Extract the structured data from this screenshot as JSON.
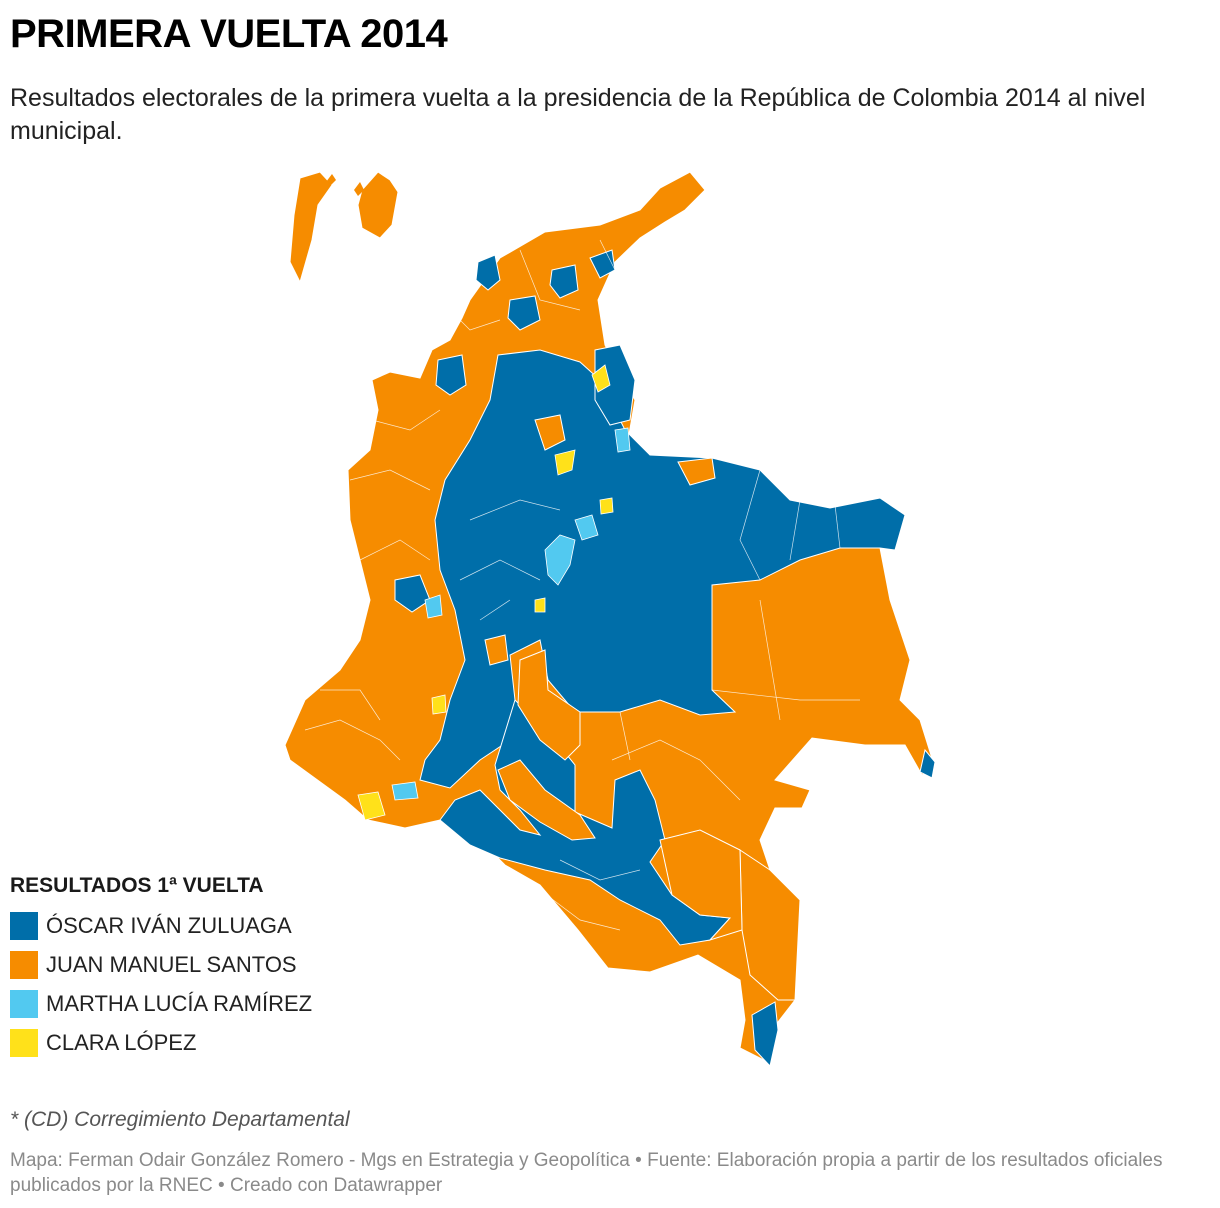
{
  "header": {
    "title": "PRIMERA VUELTA 2014",
    "subtitle": "Resultados electorales de la primera vuelta a la presidencia de la República de Colombia 2014 al nivel municipal."
  },
  "colors": {
    "zuluaga": "#006ea9",
    "santos": "#f68c00",
    "ramirez": "#52c9f0",
    "lopez": "#ffe11a",
    "border": "#ffffff"
  },
  "legend": {
    "title": "RESULTADOS 1ª VUELTA",
    "items": [
      {
        "label": "ÓSCAR IVÁN ZULUAGA",
        "color": "#006ea9"
      },
      {
        "label": "JUAN MANUEL SANTOS",
        "color": "#f68c00"
      },
      {
        "label": "MARTHA LUCÍA RAMÍREZ",
        "color": "#52c9f0"
      },
      {
        "label": "CLARA LÓPEZ",
        "color": "#ffe11a"
      }
    ]
  },
  "footer": {
    "note": "* (CD) Corregimiento Departamental",
    "credits": "Mapa: Ferman Odair González Romero - Mgs en Estrategia y Geopolítica • Fuente: Elaboración propia a partir de los resultados oficiales publicados por la RNEC • Creado con Datawrapper"
  }
}
